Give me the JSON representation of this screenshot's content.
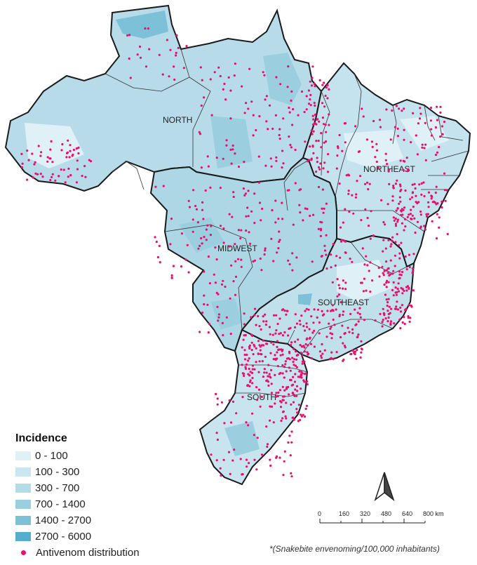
{
  "map": {
    "regions": [
      {
        "key": "north",
        "label": "NORTH"
      },
      {
        "key": "northeast",
        "label": "NORTHEAST"
      },
      {
        "key": "midwest",
        "label": "MIDWEST"
      },
      {
        "key": "southeast",
        "label": "SOUTHEAST"
      },
      {
        "key": "south",
        "label": "SOUTH"
      }
    ],
    "dot_color": "#e8106e",
    "border_color": "#1a1a1a"
  },
  "legend": {
    "title": "Incidence",
    "items": [
      {
        "label": "0 - 100",
        "color": "#dff0f7"
      },
      {
        "label": "100 - 300",
        "color": "#cbe6f0"
      },
      {
        "label": "300 - 700",
        "color": "#b4dbe8"
      },
      {
        "label": "700 - 1400",
        "color": "#9bcfe0"
      },
      {
        "label": "1400 - 2700",
        "color": "#7cc1d8"
      },
      {
        "label": "2700 - 6000",
        "color": "#55aecd"
      }
    ],
    "dot_label": "Antivenom distribution"
  },
  "scale_bar": {
    "ticks": [
      "0",
      "160",
      "320",
      "480",
      "640",
      "800 km"
    ]
  },
  "north_arrow": {
    "icon": "north-arrow-icon"
  },
  "footnote": "*(Snakebite envenoming/100,000 inhabitants)"
}
